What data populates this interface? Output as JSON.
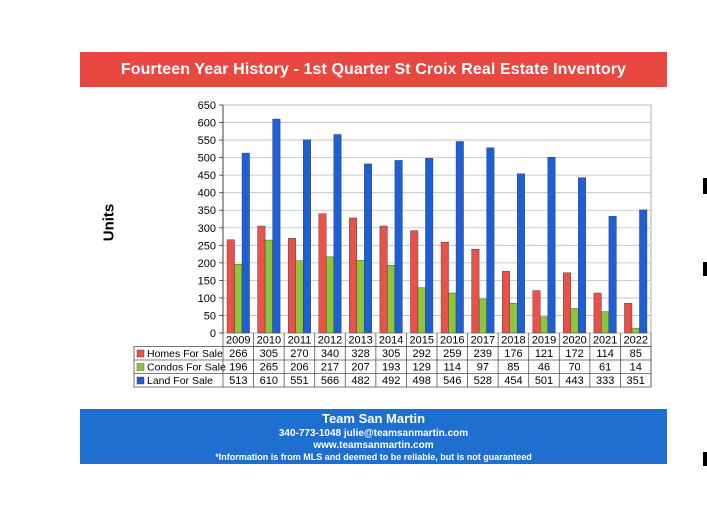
{
  "title": "Fourteen Year History - 1st Quarter St Croix Real Estate Inventory",
  "footer": {
    "team": "Team San Martin",
    "contact": "340-773-1048     julie@teamsanmartin.com",
    "website": "www.teamsanmartin.com",
    "disclaimer": "*Information is from MLS and deemed to be reliable, but is not guaranteed"
  },
  "chart_data": {
    "type": "bar",
    "ylabel": "Units",
    "xlabel": "",
    "ylim": [
      0,
      650
    ],
    "yticks": [
      0,
      50,
      100,
      150,
      200,
      250,
      300,
      350,
      400,
      450,
      500,
      550,
      600,
      650
    ],
    "grid": true,
    "legend": "data-table",
    "categories": [
      "2009",
      "2010",
      "2011",
      "2012",
      "2013",
      "2014",
      "2015",
      "2016",
      "2017",
      "2018",
      "2019",
      "2020",
      "2021",
      "2022"
    ],
    "series": [
      {
        "name": "Homes For Sale",
        "color": "#e8524a",
        "values": [
          266,
          305,
          270,
          340,
          328,
          305,
          292,
          259,
          239,
          176,
          121,
          172,
          114,
          85
        ]
      },
      {
        "name": "Condos For Sale",
        "color": "#8cc63f",
        "values": [
          196,
          265,
          206,
          217,
          207,
          193,
          129,
          114,
          97,
          85,
          46,
          70,
          61,
          14
        ]
      },
      {
        "name": "Land For Sale",
        "color": "#1f5fd6",
        "values": [
          513,
          610,
          551,
          566,
          482,
          492,
          498,
          546,
          528,
          454,
          501,
          443,
          333,
          351
        ]
      }
    ]
  }
}
